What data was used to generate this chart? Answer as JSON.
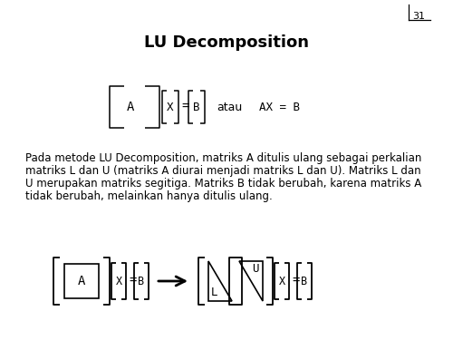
{
  "title": "LU Decomposition",
  "page_number": "31",
  "background_color": "#ffffff",
  "text_color": "#000000",
  "body_text": "Pada metode LU Decomposition, matriks A ditulis ulang sebagai perkalian\nmatriks L dan U (matriks A diurai menjadi matriks L dan U). Matriks L dan\nU merupakan matriks segitiga. Matriks B tidak berubah, karena matriks A\ntidak berubah, melainkan hanya ditulis ulang.",
  "title_fontsize": 13,
  "body_fontsize": 8.5
}
